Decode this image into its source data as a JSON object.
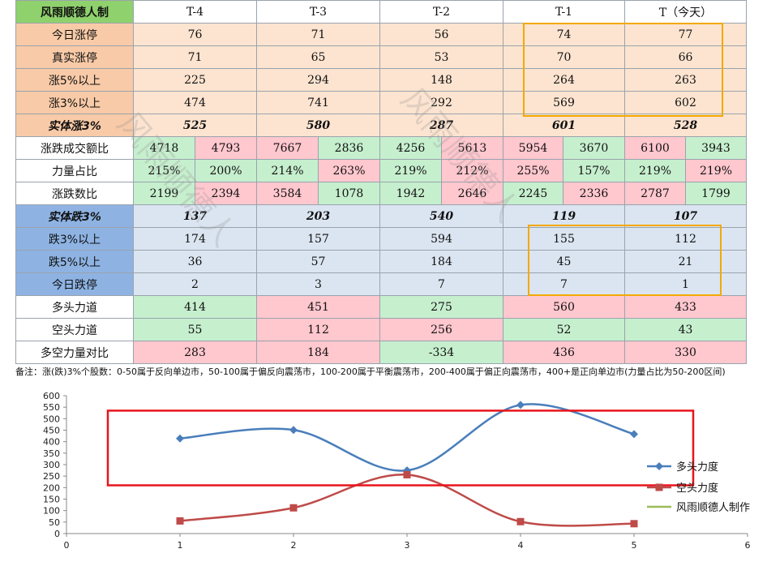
{
  "table": {
    "corner_label": "风雨顺德人制",
    "columns": [
      "T-4",
      "T-3",
      "T-2",
      "T-1",
      "T（今天）"
    ],
    "up_rows": [
      {
        "label": "今日涨停",
        "values": [
          "76",
          "71",
          "56",
          "74",
          "77"
        ]
      },
      {
        "label": "真实涨停",
        "values": [
          "71",
          "65",
          "53",
          "70",
          "66"
        ]
      },
      {
        "label": "涨5%以上",
        "values": [
          "225",
          "294",
          "148",
          "264",
          "263"
        ]
      },
      {
        "label": "涨3%以上",
        "values": [
          "474",
          "741",
          "292",
          "569",
          "602"
        ]
      }
    ],
    "solid_up": {
      "label": "实体涨3%",
      "values": [
        "525",
        "580",
        "287",
        "601",
        "528"
      ]
    },
    "split_rows": [
      {
        "label": "涨跌成交额比",
        "values": [
          "4718",
          "4793",
          "7667",
          "2836",
          "4256",
          "5613",
          "5954",
          "3670",
          "6100",
          "3943"
        ],
        "colors": [
          "green",
          "pink",
          "pink",
          "green",
          "green",
          "pink",
          "pink",
          "green",
          "pink",
          "green"
        ]
      },
      {
        "label": "力量占比",
        "values": [
          "215%",
          "200%",
          "214%",
          "263%",
          "219%",
          "212%",
          "255%",
          "157%",
          "219%",
          "219%"
        ],
        "colors": [
          "green",
          "green",
          "green",
          "pink",
          "green",
          "pink",
          "pink",
          "green",
          "green",
          "pink"
        ]
      },
      {
        "label": "涨跌数比",
        "values": [
          "2199",
          "2394",
          "3584",
          "1078",
          "1942",
          "2646",
          "2245",
          "2336",
          "2787",
          "1799"
        ],
        "colors": [
          "green",
          "pink",
          "pink",
          "green",
          "green",
          "pink",
          "green",
          "pink",
          "pink",
          "green"
        ]
      }
    ],
    "solid_down": {
      "label": "实体跌3%",
      "values": [
        "137",
        "203",
        "540",
        "119",
        "107"
      ]
    },
    "down_rows": [
      {
        "label": "跌3%以上",
        "values": [
          "174",
          "157",
          "594",
          "155",
          "112"
        ]
      },
      {
        "label": "跌5%以上",
        "values": [
          "36",
          "57",
          "184",
          "45",
          "21"
        ]
      },
      {
        "label": "今日跌停",
        "values": [
          "2",
          "3",
          "7",
          "7",
          "1"
        ]
      }
    ],
    "power_rows": [
      {
        "label": "多头力道",
        "values": [
          "414",
          "451",
          "275",
          "560",
          "433"
        ],
        "colors": [
          "green",
          "pink",
          "green",
          "pink",
          "pink"
        ]
      },
      {
        "label": "空头力道",
        "values": [
          "55",
          "112",
          "256",
          "52",
          "43"
        ],
        "colors": [
          "green",
          "pink",
          "pink",
          "green",
          "green"
        ]
      },
      {
        "label": "多空力量对比",
        "values": [
          "283",
          "184",
          "-334",
          "436",
          "330"
        ],
        "colors": [
          "pink",
          "pink",
          "green",
          "pink",
          "pink"
        ]
      }
    ]
  },
  "note": "备注：涨(跌)3%个股数：0-50属于反向单边市，50-100属于偏反向震荡市，100-200属于平衡震荡市，200-400属于偏正向震荡市，400+是正向单边市(力量占比为50-200区间)",
  "watermark": "风雨顺德人",
  "colors": {
    "bull": "#4a7ebb",
    "bear": "#be4b48",
    "maker": "#9bbb59",
    "highlight_orange": "#f2a900",
    "highlight_red": "#e8141c"
  },
  "chart_data": {
    "type": "scatter",
    "mode": "smooth-line",
    "x_range": [
      0,
      6
    ],
    "y_range": [
      0,
      600
    ],
    "x_ticks": [
      0,
      1,
      2,
      3,
      4,
      5,
      6
    ],
    "y_ticks": [
      0,
      50,
      100,
      150,
      200,
      250,
      300,
      350,
      400,
      450,
      500,
      550,
      600
    ],
    "grid": false,
    "legend_position": "right",
    "series": [
      {
        "name": "多头力度",
        "marker": "diamond",
        "x": [
          1,
          2,
          3,
          4,
          5
        ],
        "y": [
          414,
          451,
          275,
          560,
          433
        ]
      },
      {
        "name": "空头力度",
        "marker": "square",
        "x": [
          1,
          2,
          3,
          4,
          5
        ],
        "y": [
          55,
          112,
          256,
          52,
          43
        ]
      },
      {
        "name": "风雨顺德人制作",
        "marker": "none",
        "x": [],
        "y": []
      }
    ],
    "highlight_box_y": [
      210,
      535
    ]
  }
}
